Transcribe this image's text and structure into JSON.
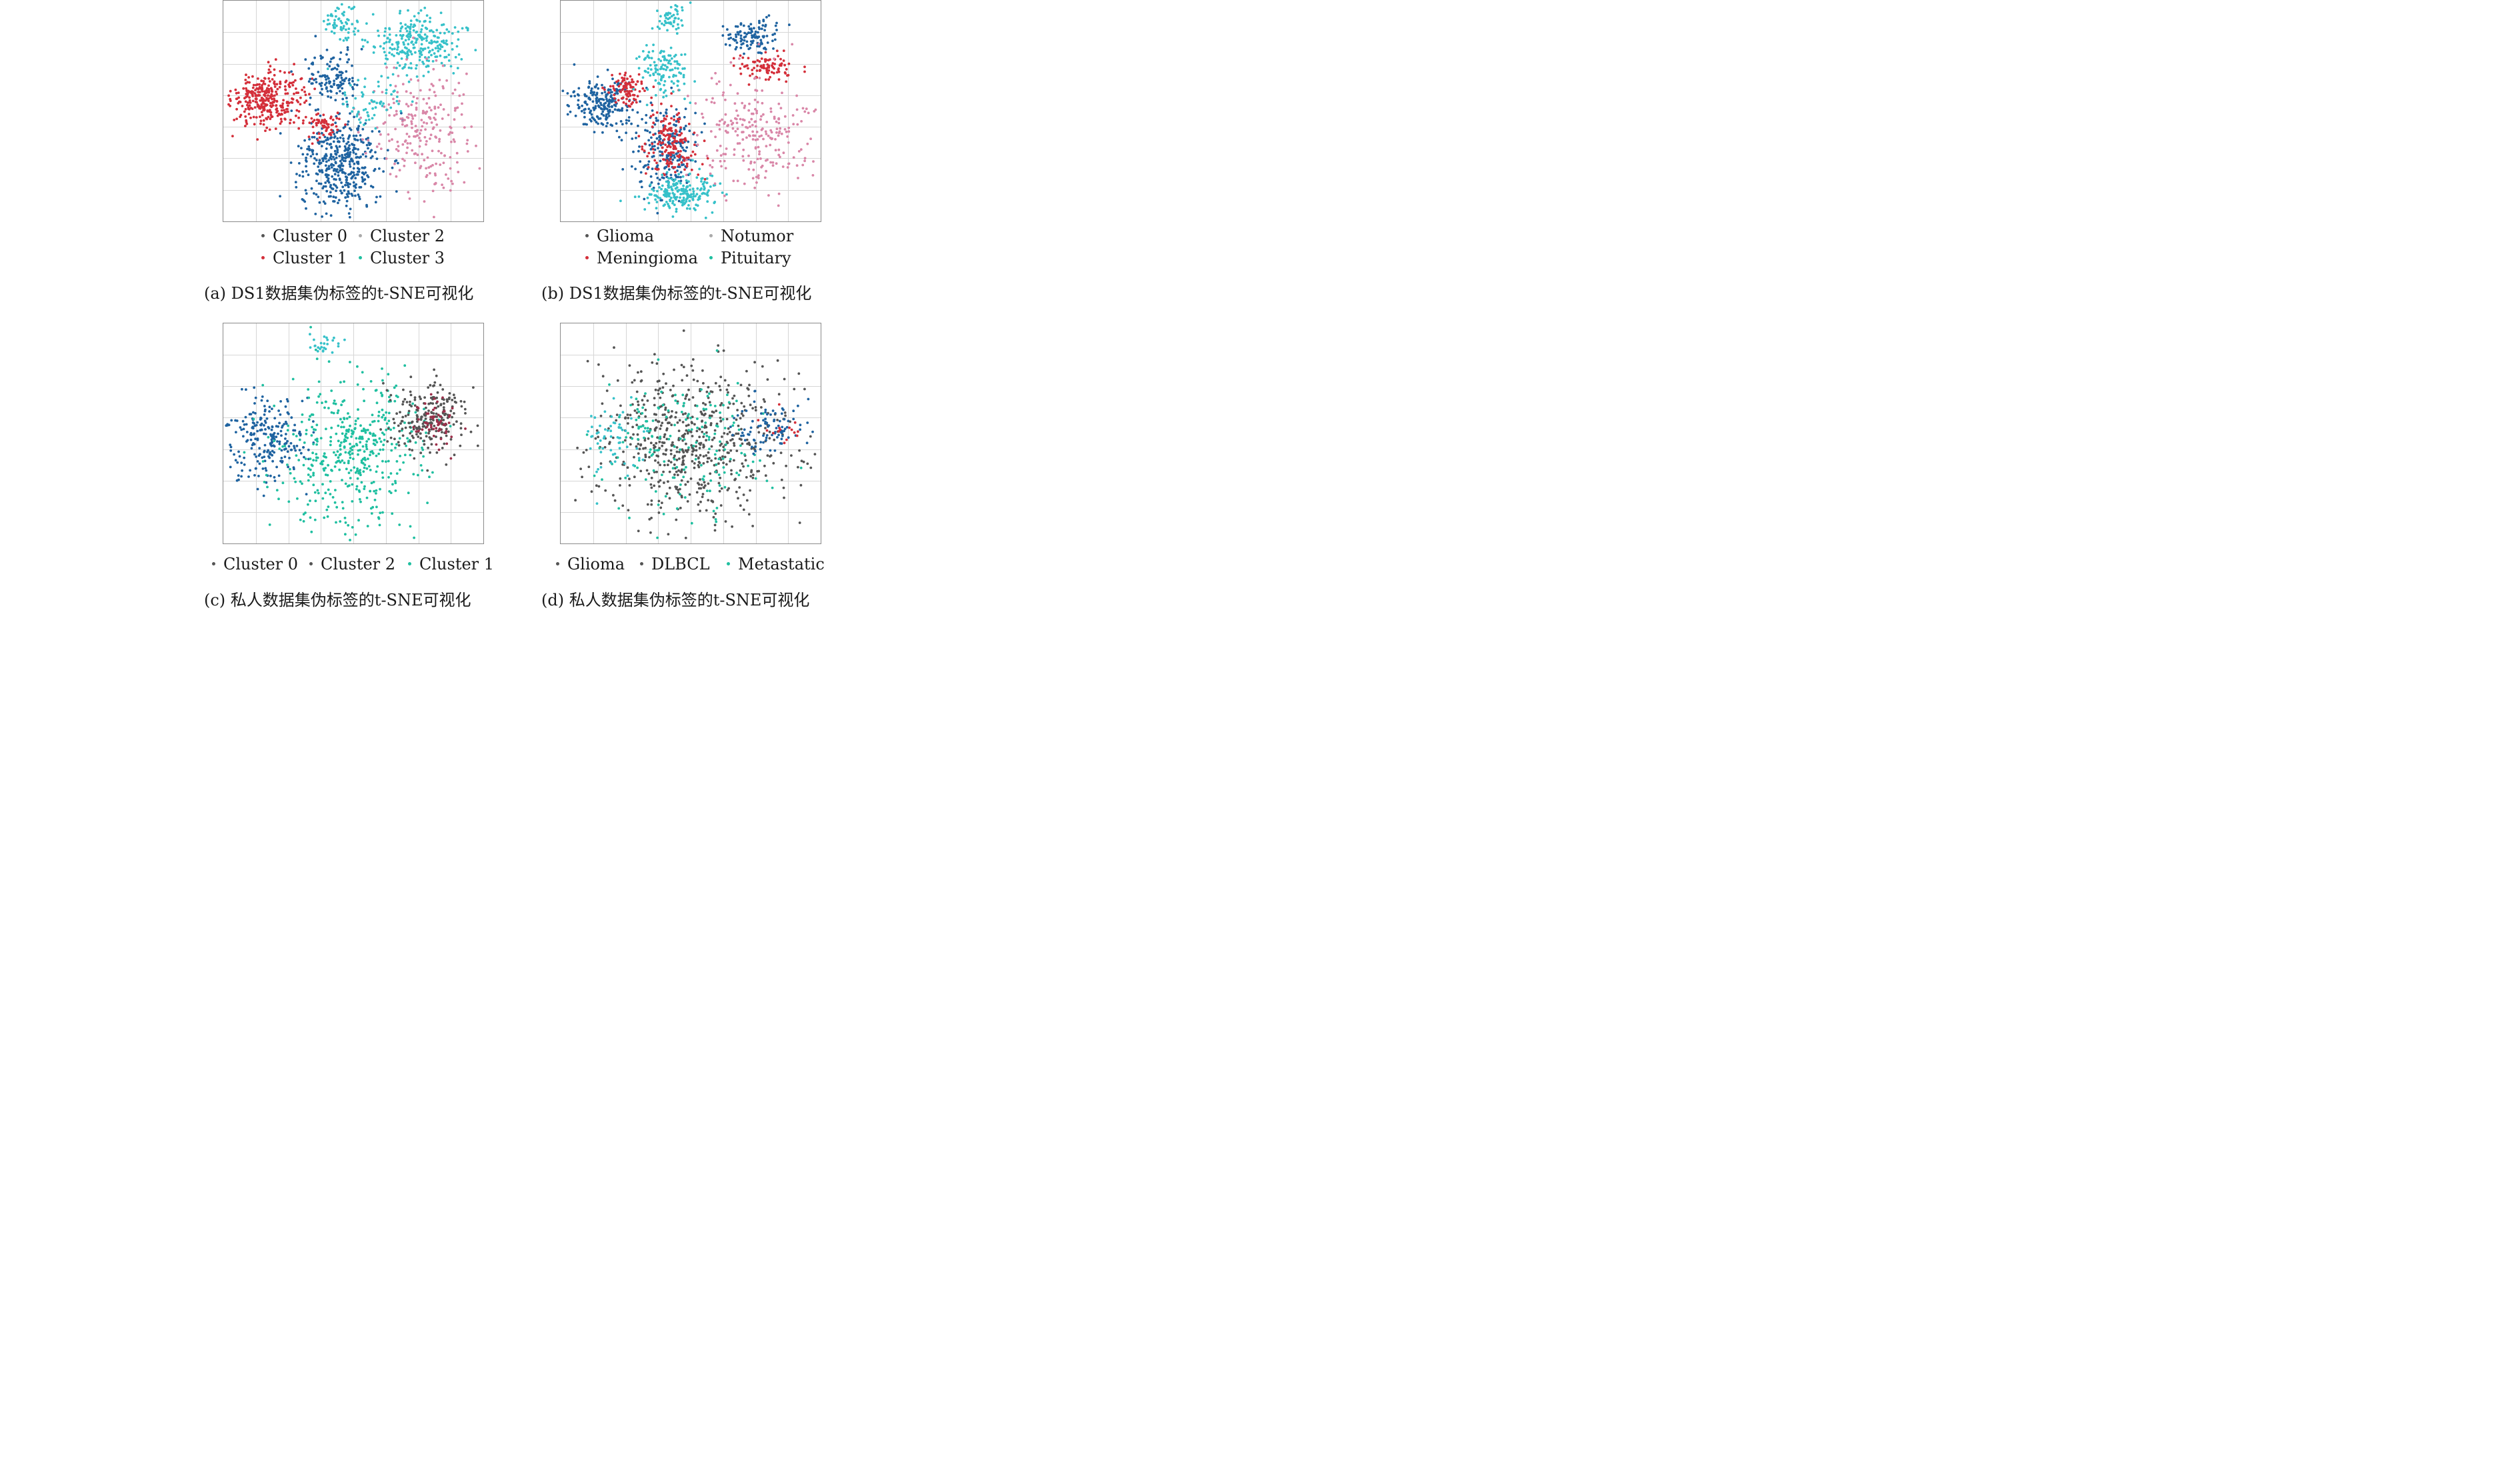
{
  "colors": {
    "gray": "#555555",
    "red": "#d42f3a",
    "blue": "#1f63a0",
    "cyan": "#36c1c9",
    "teal": "#1fbfa0",
    "pink": "#d987a8",
    "grid": "#d6d6d6"
  },
  "chart_data": [
    {
      "type": "scatter",
      "caption": "(a) DS1数据集伪标签的t-SNE可视化",
      "legend": [
        {
          "label": "Cluster 0",
          "color": "#555555"
        },
        {
          "label": "Cluster 2",
          "color": "#aaaaaa"
        },
        {
          "label": "Cluster 1",
          "color": "#d42f3a"
        },
        {
          "label": "Cluster 3",
          "color": "#1fbfa0"
        }
      ],
      "grid": true,
      "clusters": [
        {
          "color": "#d42f3a",
          "x": 0.17,
          "y": 0.45,
          "sx": 0.07,
          "sy": 0.06,
          "n": 320
        },
        {
          "color": "#1f63a0",
          "x": 0.45,
          "y": 0.74,
          "sx": 0.08,
          "sy": 0.11,
          "n": 420
        },
        {
          "color": "#1f63a0",
          "x": 0.42,
          "y": 0.34,
          "sx": 0.05,
          "sy": 0.06,
          "n": 120
        },
        {
          "color": "#d42f3a",
          "x": 0.39,
          "y": 0.56,
          "sx": 0.03,
          "sy": 0.03,
          "n": 60
        },
        {
          "color": "#36c1c9",
          "x": 0.75,
          "y": 0.2,
          "sx": 0.09,
          "sy": 0.07,
          "n": 260
        },
        {
          "color": "#36c1c9",
          "x": 0.45,
          "y": 0.09,
          "sx": 0.04,
          "sy": 0.04,
          "n": 60
        },
        {
          "color": "#d987a8",
          "x": 0.77,
          "y": 0.59,
          "sx": 0.1,
          "sy": 0.13,
          "n": 240
        },
        {
          "color": "#36c1c9",
          "x": 0.58,
          "y": 0.45,
          "sx": 0.06,
          "sy": 0.06,
          "n": 60
        }
      ]
    },
    {
      "type": "scatter",
      "caption": "(b) DS1数据集伪标签的t-SNE可视化",
      "legend": [
        {
          "label": "Glioma",
          "color": "#555555"
        },
        {
          "label": "Notumor",
          "color": "#aaaaaa"
        },
        {
          "label": "Meningioma",
          "color": "#d42f3a"
        },
        {
          "label": "Pituitary",
          "color": "#1fbfa0"
        }
      ],
      "grid": true,
      "clusters": [
        {
          "color": "#1f63a0",
          "x": 0.16,
          "y": 0.47,
          "sx": 0.06,
          "sy": 0.06,
          "n": 220
        },
        {
          "color": "#d42f3a",
          "x": 0.25,
          "y": 0.4,
          "sx": 0.04,
          "sy": 0.04,
          "n": 90
        },
        {
          "color": "#1f63a0",
          "x": 0.4,
          "y": 0.68,
          "sx": 0.06,
          "sy": 0.09,
          "n": 220
        },
        {
          "color": "#d42f3a",
          "x": 0.42,
          "y": 0.64,
          "sx": 0.05,
          "sy": 0.08,
          "n": 160
        },
        {
          "color": "#36c1c9",
          "x": 0.46,
          "y": 0.87,
          "sx": 0.07,
          "sy": 0.04,
          "n": 200
        },
        {
          "color": "#36c1c9",
          "x": 0.4,
          "y": 0.31,
          "sx": 0.05,
          "sy": 0.06,
          "n": 120
        },
        {
          "color": "#1f63a0",
          "x": 0.74,
          "y": 0.16,
          "sx": 0.06,
          "sy": 0.04,
          "n": 120
        },
        {
          "color": "#d42f3a",
          "x": 0.8,
          "y": 0.3,
          "sx": 0.05,
          "sy": 0.03,
          "n": 90
        },
        {
          "color": "#d987a8",
          "x": 0.73,
          "y": 0.6,
          "sx": 0.11,
          "sy": 0.13,
          "n": 240
        },
        {
          "color": "#36c1c9",
          "x": 0.43,
          "y": 0.08,
          "sx": 0.03,
          "sy": 0.03,
          "n": 50
        }
      ]
    },
    {
      "type": "scatter",
      "caption": "(c) 私人数据集伪标签的t-SNE可视化",
      "legend": [
        {
          "label": "Cluster 0",
          "color": "#555555"
        },
        {
          "label": "Cluster 2",
          "color": "#555555"
        },
        {
          "label": "Cluster 1",
          "color": "#1fbfa0"
        }
      ],
      "grid": true,
      "clusters": [
        {
          "color": "#1f63a0",
          "x": 0.17,
          "y": 0.52,
          "sx": 0.08,
          "sy": 0.1,
          "n": 240
        },
        {
          "color": "#1fbfa0",
          "x": 0.48,
          "y": 0.58,
          "sx": 0.14,
          "sy": 0.17,
          "n": 460
        },
        {
          "color": "#555555",
          "x": 0.8,
          "y": 0.43,
          "sx": 0.08,
          "sy": 0.09,
          "n": 220
        },
        {
          "color": "#9c2f4a",
          "x": 0.82,
          "y": 0.45,
          "sx": 0.04,
          "sy": 0.05,
          "n": 60
        },
        {
          "color": "#36c1c9",
          "x": 0.38,
          "y": 0.1,
          "sx": 0.03,
          "sy": 0.03,
          "n": 25
        }
      ]
    },
    {
      "type": "scatter",
      "caption": "(d) 私人数据集伪标签的t-SNE可视化",
      "legend": [
        {
          "label": "Glioma",
          "color": "#555555"
        },
        {
          "label": "DLBCL",
          "color": "#555555"
        },
        {
          "label": "Metastatic",
          "color": "#1fbfa0"
        }
      ],
      "grid": true,
      "clusters": [
        {
          "color": "#555555",
          "x": 0.5,
          "y": 0.52,
          "sx": 0.18,
          "sy": 0.18,
          "n": 620
        },
        {
          "color": "#1fbfa0",
          "x": 0.45,
          "y": 0.55,
          "sx": 0.17,
          "sy": 0.16,
          "n": 180
        },
        {
          "color": "#1f63a0",
          "x": 0.8,
          "y": 0.47,
          "sx": 0.07,
          "sy": 0.06,
          "n": 90
        },
        {
          "color": "#36c1c9",
          "x": 0.18,
          "y": 0.52,
          "sx": 0.06,
          "sy": 0.08,
          "n": 60
        },
        {
          "color": "#d42f3a",
          "x": 0.85,
          "y": 0.48,
          "sx": 0.04,
          "sy": 0.03,
          "n": 15
        }
      ]
    }
  ]
}
